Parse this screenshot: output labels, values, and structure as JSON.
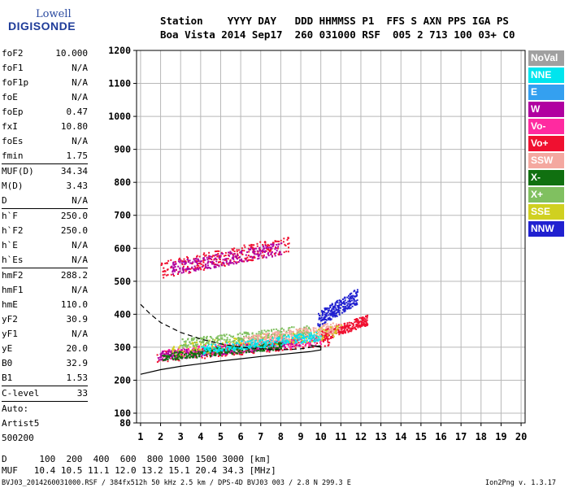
{
  "logo": {
    "line1": "Lowell",
    "line2": "DIGISONDE"
  },
  "header": {
    "line1": "Station    YYYY DAY   DDD HHMMSS P1  FFS S AXN PPS IGA PS",
    "line2": "Boa Vista 2014 Sep17  260 031000 RSF  005 2 713 100 03+ C0"
  },
  "params": [
    {
      "name": "foF2",
      "value": "10.000"
    },
    {
      "name": "foF1",
      "value": "N/A"
    },
    {
      "name": "foF1p",
      "value": "N/A"
    },
    {
      "name": "foE",
      "value": "N/A"
    },
    {
      "name": "foEp",
      "value": "0.47"
    },
    {
      "name": "fxI",
      "value": "10.80"
    },
    {
      "name": "foEs",
      "value": "N/A"
    },
    {
      "name": "fmin",
      "value": "1.75",
      "sep": true
    },
    {
      "name": "MUF(D)",
      "value": "34.34"
    },
    {
      "name": "M(D)",
      "value": "3.43"
    },
    {
      "name": "D",
      "value": "N/A",
      "sep": true
    },
    {
      "name": "h`F",
      "value": "250.0"
    },
    {
      "name": "h`F2",
      "value": "250.0"
    },
    {
      "name": "h`E",
      "value": "N/A"
    },
    {
      "name": "h`Es",
      "value": "N/A",
      "sep": true
    },
    {
      "name": "hmF2",
      "value": "288.2"
    },
    {
      "name": "hmF1",
      "value": "N/A"
    },
    {
      "name": "hmE",
      "value": "110.0"
    },
    {
      "name": "yF2",
      "value": "30.9"
    },
    {
      "name": "yF1",
      "value": "N/A"
    },
    {
      "name": "yE",
      "value": "20.0"
    },
    {
      "name": "B0",
      "value": "32.9"
    },
    {
      "name": "B1",
      "value": "1.53",
      "sep": true
    },
    {
      "name": "C-level",
      "value": "33",
      "sep": true
    }
  ],
  "auto": {
    "line1": "Auto:",
    "line2": "Artist5",
    "line3": "500200"
  },
  "footer": {
    "dline": "D      100  200  400  600  800 1000 1500 3000 [km]",
    "mufline": "MUF   10.4 10.5 11.1 12.0 13.2 15.1 20.4 34.3 [MHz]",
    "file": "BVJ03_2014260031000.RSF / 384fx512h 50 kHz 2.5 km / DPS-4D BVJ03 003 / 2.8 N 299.3 E",
    "version": "Ion2Png v. 1.3.17"
  },
  "chart_data": {
    "type": "scatter",
    "xlim": [
      0.8,
      20.2
    ],
    "ylim": [
      80,
      1200
    ],
    "x_ticks": [
      1,
      2,
      3,
      4,
      5,
      6,
      7,
      8,
      9,
      10,
      11,
      12,
      13,
      14,
      15,
      16,
      17,
      18,
      19,
      20
    ],
    "y_ticks": [
      80,
      100,
      200,
      300,
      400,
      500,
      600,
      700,
      800,
      900,
      1000,
      1100,
      1200
    ],
    "grid": true,
    "legend_position": "right",
    "legend": [
      {
        "label": "NoVal",
        "color": "#a0a0a0"
      },
      {
        "label": "NNE",
        "color": "#00e5ee"
      },
      {
        "label": "E",
        "color": "#34a0f0"
      },
      {
        "label": "W",
        "color": "#b000a0"
      },
      {
        "label": "Vo-",
        "color": "#ff2aa0"
      },
      {
        "label": "Vo+",
        "color": "#f01030"
      },
      {
        "label": "SSW",
        "color": "#f4a8a0"
      },
      {
        "label": "X-",
        "color": "#107010"
      },
      {
        "label": "X+",
        "color": "#80c060"
      },
      {
        "label": "SSE",
        "color": "#d0d020"
      },
      {
        "label": "NNW",
        "color": "#2020d0"
      }
    ],
    "series": [
      {
        "name": "Vo+",
        "color": "#f01030",
        "clusters": [
          {
            "x": [
              1.8,
              10.5
            ],
            "y": [
              255,
              340
            ]
          },
          {
            "x": [
              10.0,
              12.3
            ],
            "y": [
              320,
              400
            ]
          },
          {
            "x": [
              2.0,
              8.4
            ],
            "y": [
              510,
              640
            ]
          }
        ]
      },
      {
        "name": "Vo-",
        "color": "#ff2aa0",
        "clusters": [
          {
            "x": [
              2.0,
              10.0
            ],
            "y": [
              265,
              340
            ]
          }
        ]
      },
      {
        "name": "W",
        "color": "#b000a0",
        "clusters": [
          {
            "x": [
              2.5,
              8.0
            ],
            "y": [
              520,
              620
            ]
          },
          {
            "x": [
              1.8,
              9.0
            ],
            "y": [
              260,
              330
            ]
          }
        ]
      },
      {
        "name": "NNW",
        "color": "#2020d0",
        "clusters": [
          {
            "x": [
              9.8,
              11.8
            ],
            "y": [
              360,
              480
            ]
          }
        ]
      },
      {
        "name": "SSE",
        "color": "#d0d020",
        "clusters": [
          {
            "x": [
              2.5,
              11.0
            ],
            "y": [
              270,
              370
            ]
          }
        ]
      },
      {
        "name": "X-",
        "color": "#107010",
        "clusters": [
          {
            "x": [
              2.0,
              8.0
            ],
            "y": [
              260,
              320
            ]
          }
        ]
      },
      {
        "name": "X+",
        "color": "#80c060",
        "clusters": [
          {
            "x": [
              3.0,
              9.5
            ],
            "y": [
              300,
              370
            ]
          }
        ]
      },
      {
        "name": "SSW",
        "color": "#f4a8a0",
        "clusters": [
          {
            "x": [
              6.0,
              11.0
            ],
            "y": [
              300,
              380
            ]
          }
        ]
      },
      {
        "name": "NNE",
        "color": "#00e5ee",
        "clusters": [
          {
            "x": [
              4.0,
              10.0
            ],
            "y": [
              280,
              350
            ]
          }
        ]
      }
    ],
    "profile_curves": [
      {
        "name": "dashed-profile",
        "style": "dashed",
        "x": [
          1.0,
          1.5,
          2.0,
          3.0,
          4.0,
          5.0,
          6.0,
          7.0,
          8.0,
          9.0,
          9.5,
          10.0
        ],
        "y": [
          430,
          400,
          375,
          345,
          325,
          310,
          300,
          295,
          292,
          295,
          300,
          305
        ]
      },
      {
        "name": "solid-profile",
        "style": "solid",
        "x": [
          1.0,
          2.0,
          3.0,
          4.0,
          5.0,
          6.0,
          7.0,
          8.0,
          9.0,
          9.5,
          10.0,
          10.0,
          9.5
        ],
        "y": [
          218,
          232,
          242,
          250,
          258,
          265,
          272,
          278,
          284,
          287,
          292,
          300,
          306
        ]
      }
    ]
  }
}
